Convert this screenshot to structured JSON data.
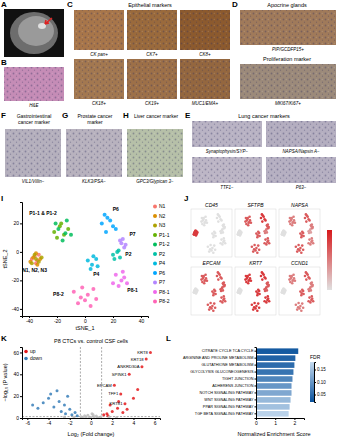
{
  "image_panels": {
    "mri": {
      "letter": "A"
    },
    "he": {
      "letter": "B",
      "images": [
        {
          "label": "H&E",
          "color": "#c58cb6"
        }
      ]
    },
    "epithelial": {
      "letter": "C",
      "title": "Epithelial markers",
      "images": [
        {
          "label": "CK pan+",
          "color": "#a8764a"
        },
        {
          "label": "CK7+",
          "color": "#9a6a3c"
        },
        {
          "label": "CK8+",
          "color": "#8c5a2e"
        },
        {
          "label": "CK18+",
          "color": "#a37850"
        },
        {
          "label": "CK19+",
          "color": "#9d7048"
        },
        {
          "label": "MUC1/EMA+",
          "color": "#94673f"
        }
      ]
    },
    "apocrine": {
      "letter": "D",
      "groups": [
        {
          "title": "Apocrine glands",
          "images": [
            {
              "label": "PIP/GCDFP15+",
              "color": "#a07a5a"
            }
          ]
        },
        {
          "title": "Proliferation marker",
          "images": [
            {
              "label": "MKI67/Ki67+",
              "color": "#9c8a7a"
            }
          ]
        }
      ]
    },
    "lung": {
      "letter": "E",
      "title": "Lung cancer markers",
      "images": [
        {
          "label": "Synaptophysin/SYP−",
          "color": "#b9b3c4"
        },
        {
          "label": "NAPSA/Napsin A−",
          "color": "#b4aec0"
        },
        {
          "label": "TTF1−",
          "color": "#bdb6c6"
        },
        {
          "label": "P63−",
          "color": "#b6b0c2"
        }
      ]
    },
    "gi": {
      "letter": "F",
      "title": "Gastrointestinal cancer marker",
      "images": [
        {
          "label": "VIL1/Villin−",
          "color": "#b5b0bd"
        }
      ]
    },
    "prostate": {
      "letter": "G",
      "title": "Prostate cancer marker",
      "images": [
        {
          "label": "KLK3/PSA−",
          "color": "#b8b2be"
        }
      ]
    },
    "liver": {
      "letter": "H",
      "title": "Liver cancer marker",
      "images": [
        {
          "label": "GPC3/Glypican 3−",
          "color": "#b6c0a8"
        }
      ]
    }
  },
  "chart_data": [
    {
      "panel": "I",
      "type": "scatter",
      "x_label": "tSNE_1",
      "y_label": "tSNE_2",
      "xlim": [
        -45,
        45
      ],
      "ylim": [
        -45,
        35
      ],
      "xticks": [
        -40,
        -20,
        0,
        20,
        40
      ],
      "yticks": [
        -40,
        -20,
        0,
        20
      ],
      "legend": "right",
      "series": [
        {
          "name": "N1",
          "color": "#F8766D",
          "x": [
            -36,
            -34,
            -38,
            -33,
            -35
          ],
          "values": [
            -3,
            -6,
            -5,
            -2,
            -8
          ]
        },
        {
          "name": "N2",
          "color": "#DB8E00",
          "x": [
            -37,
            -35,
            -32,
            -39,
            -34
          ],
          "values": [
            -4,
            -1,
            -5,
            -7,
            -9
          ]
        },
        {
          "name": "N3",
          "color": "#AEA200",
          "x": [
            -36,
            -33,
            -38,
            -31,
            -35
          ],
          "values": [
            -2,
            -7,
            -8,
            -4,
            -5
          ]
        },
        {
          "name": "P1-1",
          "color": "#64B200",
          "x": [
            -22,
            -18,
            -15,
            -20,
            -12,
            -17
          ],
          "values": [
            14,
            18,
            12,
            10,
            16,
            20
          ]
        },
        {
          "name": "P1-2",
          "color": "#00BD5C",
          "x": [
            -19,
            -14,
            -21,
            -16,
            -10,
            -13
          ],
          "values": [
            16,
            13,
            20,
            8,
            12,
            22
          ]
        },
        {
          "name": "P2",
          "color": "#00C1A7",
          "x": [
            20,
            23,
            25,
            21,
            24
          ],
          "values": [
            -2,
            0,
            -4,
            -5,
            1
          ]
        },
        {
          "name": "P4",
          "color": "#00BADE",
          "x": [
            2,
            5,
            8,
            4,
            6,
            9
          ],
          "values": [
            -6,
            -9,
            -5,
            -12,
            -3,
            -10
          ]
        },
        {
          "name": "P6",
          "color": "#00A6FF",
          "x": [
            12,
            16,
            20,
            14,
            18,
            22,
            15
          ],
          "values": [
            20,
            24,
            18,
            26,
            22,
            16,
            14
          ]
        },
        {
          "name": "P7",
          "color": "#B385FF",
          "x": [
            26,
            28,
            25,
            29,
            27
          ],
          "values": [
            6,
            3,
            8,
            5,
            9
          ]
        },
        {
          "name": "P8-1",
          "color": "#EF67EB",
          "x": [
            22,
            26,
            28,
            24,
            30,
            27,
            20
          ],
          "values": [
            -16,
            -20,
            -18,
            -24,
            -22,
            -14,
            -22
          ]
        },
        {
          "name": "P8-2",
          "color": "#FF63B6",
          "x": [
            -8,
            -3,
            2,
            6,
            -5,
            0,
            4,
            -2,
            8
          ],
          "values": [
            -28,
            -32,
            -30,
            -26,
            -36,
            -34,
            -38,
            -25,
            -33
          ]
        }
      ],
      "annotations": [
        {
          "text": "P1-1 & P1-2",
          "x": -30,
          "y": 26
        },
        {
          "text": "N1, N2, N3",
          "x": -36,
          "y": -14
        },
        {
          "text": "P6",
          "x": 22,
          "y": 29
        },
        {
          "text": "P7",
          "x": 34,
          "y": 11
        },
        {
          "text": "P2",
          "x": 31,
          "y": -3
        },
        {
          "text": "P4",
          "x": 8,
          "y": -17
        },
        {
          "text": "P8-1",
          "x": 34,
          "y": -28
        },
        {
          "text": "P8-2",
          "x": -19,
          "y": -31
        }
      ]
    },
    {
      "panel": "J",
      "type": "feature_plot",
      "features": [
        {
          "name": "CD45",
          "expression": [
            2.5,
            2.5,
            2.5,
            0,
            0,
            0,
            0,
            0,
            0,
            0,
            0
          ]
        },
        {
          "name": "SFTPB",
          "expression": [
            0,
            0,
            0,
            2,
            2,
            1.5,
            2,
            2.5,
            2,
            2,
            2
          ]
        },
        {
          "name": "NAPSA",
          "expression": [
            0,
            0,
            0,
            1.5,
            1.5,
            1,
            2,
            2,
            1.5,
            1.5,
            2
          ]
        },
        {
          "name": "EPCAM",
          "expression": [
            0,
            0,
            0,
            2,
            2,
            2,
            2,
            2,
            2,
            2,
            2
          ]
        },
        {
          "name": "KRT7",
          "expression": [
            0,
            0,
            0,
            2.5,
            2.5,
            2,
            2.5,
            2.5,
            2,
            2.5,
            2.5
          ]
        },
        {
          "name": "CCND1",
          "expression": [
            0,
            0,
            0,
            1.5,
            1.5,
            1.5,
            2,
            2,
            1.5,
            2,
            1.5
          ]
        }
      ],
      "colorbar": {
        "range": [
          0,
          3
        ]
      }
    },
    {
      "panel": "K",
      "type": "scatter",
      "title": "P8 CTCs vs. control CSF cells",
      "x_label": "Log₂ (Fold change)",
      "y_label": "−log₁₀ (P value)",
      "xlim": [
        -6.5,
        6.5
      ],
      "ylim": [
        0,
        65
      ],
      "xticks": [
        -6,
        -4,
        -2,
        0,
        2,
        4,
        6
      ],
      "yticks": [
        0,
        20,
        40,
        60
      ],
      "thresholds": {
        "x": [
          -1,
          1
        ],
        "y": 1.3
      },
      "legend": "top-left",
      "series": [
        {
          "name": "up",
          "color": "#e41a1c",
          "x": [
            5.6,
            5.2,
            4.8,
            3.6,
            2.2,
            2.8,
            3.2,
            1.5,
            2.0,
            2.5,
            3.0,
            4.0,
            4.4,
            1.8,
            2.6,
            3.4,
            1.2,
            1.6
          ],
          "values": [
            60,
            54,
            47,
            40,
            30,
            22,
            13,
            4,
            6,
            9,
            5,
            18,
            26,
            12,
            15,
            8,
            3,
            2
          ]
        },
        {
          "name": "down",
          "color": "#377eb8",
          "x": [
            -1.5,
            -2,
            -2.5,
            -3,
            -3.5,
            -4,
            -4.5,
            -5,
            -2.2,
            -3.2,
            -1.8,
            -2.8,
            -3.8,
            -5.5,
            -1.3,
            -2.4
          ],
          "values": [
            5,
            8,
            12,
            15,
            10,
            18,
            14,
            9,
            20,
            25,
            3,
            6,
            22,
            12,
            2,
            4
          ]
        },
        {
          "color": "#bbbbbb",
          "x": [
            -0.8,
            -0.5,
            -0.2,
            0,
            0.3,
            0.6,
            0.9,
            -0.6,
            0.2,
            0.5,
            -0.3,
            0.7,
            -0.9,
            0.1,
            -1.6,
            1.7,
            -2.5,
            2.4
          ],
          "values": [
            0.5,
            1,
            0.3,
            0.8,
            1.2,
            0.4,
            0.9,
            2,
            3,
            1.8,
            2.5,
            0.2,
            1.1,
            4,
            0.6,
            0.9,
            1.0,
            0.4
          ]
        }
      ],
      "annotations": [
        {
          "text": "KRT8",
          "x": 5.6,
          "y": 60
        },
        {
          "text": "KRT18",
          "x": 5.2,
          "y": 54
        },
        {
          "text": "ANKRD30A",
          "x": 4.8,
          "y": 47
        },
        {
          "text": "SPINK1",
          "x": 3.6,
          "y": 40
        },
        {
          "text": "EPCAM",
          "x": 2.2,
          "y": 30
        },
        {
          "text": "TFF1",
          "x": 2.8,
          "y": 22
        },
        {
          "text": "KRT81",
          "x": 3.2,
          "y": 13
        }
      ]
    },
    {
      "panel": "L",
      "type": "bar",
      "orientation": "horizontal",
      "categories": [
        "CITRATE CYCLE TCA CYCLE",
        "ARGININE AND PROLINE METABOLISM",
        "GLUTATHIONE METABOLISM",
        "GLYCOLYSIS GLUCONEOGENESIS",
        "TIGHT JUNCTION",
        "ADHERENS JUNCTION",
        "NOTCH SIGNALING PATHWAY",
        "WNT SIGNALING PATHWAY",
        "PPAR SIGNALING PATHWAY",
        "TGF BETA SIGNALING PATHWAY"
      ],
      "values": [
        2.2,
        2.05,
        2.0,
        1.95,
        1.9,
        1.85,
        1.85,
        1.8,
        1.75,
        1.7
      ],
      "fdr": [
        0.03,
        0.04,
        0.05,
        0.06,
        0.08,
        0.1,
        0.12,
        0.14,
        0.15,
        0.17
      ],
      "x_label": "Normalized Enrichment Score",
      "xlim": [
        0,
        2.5
      ],
      "xticks": [
        0,
        1,
        2
      ],
      "colorbar": {
        "title": "FDR",
        "range": [
          0.02,
          0.18
        ],
        "ticks": [
          0.05,
          {
            "value": 0.1,
            "label": "0.10"
          },
          0.15
        ]
      }
    }
  ]
}
